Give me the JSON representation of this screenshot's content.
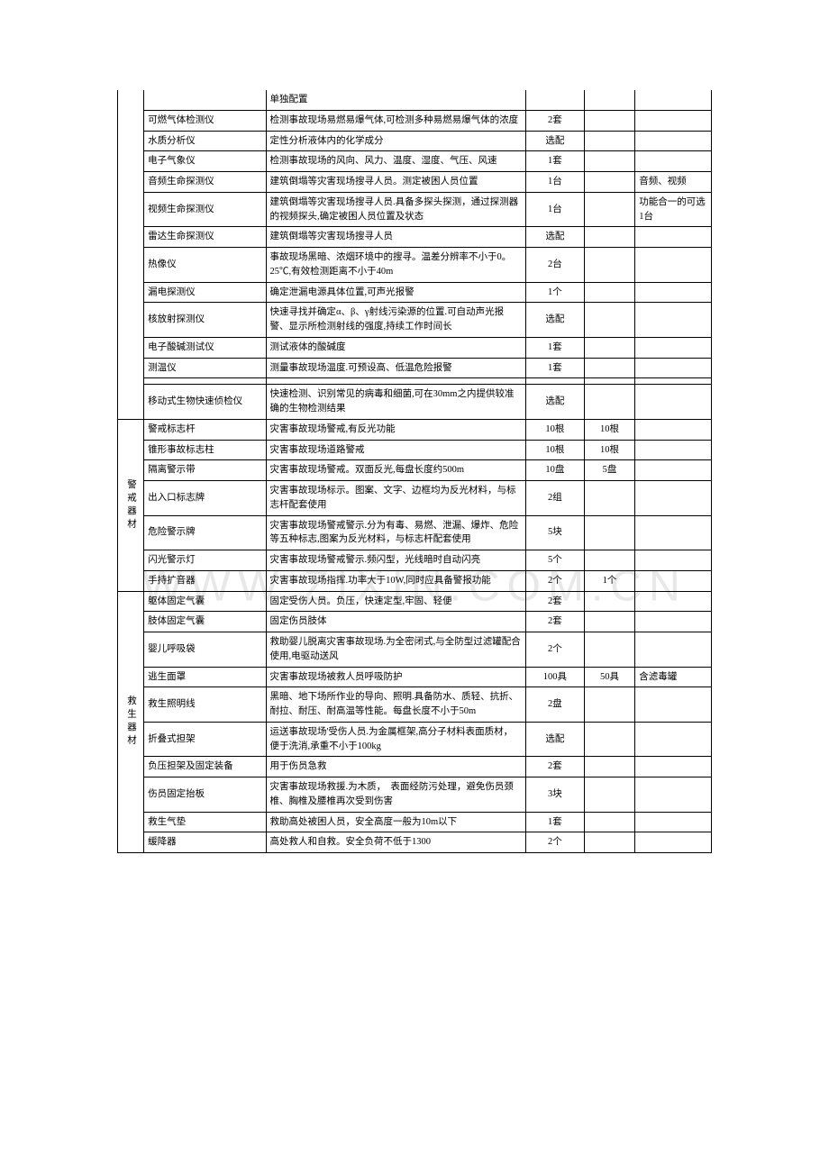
{
  "watermark": "WWW.ZIXIN.COM.CN",
  "table": {
    "columns": [
      "category",
      "name",
      "description",
      "qty1",
      "qty2",
      "note"
    ],
    "rows": [
      {
        "cat": "",
        "cat_rowspan": 14,
        "name": "",
        "desc": "单独配置",
        "qty1": "",
        "qty2": "",
        "note": "",
        "first_row": true
      },
      {
        "name": "可燃气体检测仪",
        "desc": "检测事故现场易燃易爆气体,可检测多种易燃易爆气体的浓度",
        "qty1": "2套",
        "qty2": "",
        "note": ""
      },
      {
        "name": "水质分析仪",
        "desc": "定性分析液体内的化学成分",
        "qty1": "选配",
        "qty2": "",
        "note": ""
      },
      {
        "name": "电子气象仪",
        "desc": "检测事故现场的风向、风力、温度、湿度、气压、风速",
        "qty1": "1套",
        "qty2": "",
        "note": ""
      },
      {
        "name": "音频生命探测仪",
        "desc": "建筑倒塌等灾害现场搜寻人员。测定被困人员位置",
        "qty1": "1台",
        "qty2": "",
        "note": "音频、视频"
      },
      {
        "name": "视频生命探测仪",
        "desc": "建筑倒塌等灾害现场搜寻人员.具备多探头探测，通过探测器的视频探头,确定被困人员位置及状态",
        "qty1": "1台",
        "qty2": "",
        "note": "功能合一的可选1台"
      },
      {
        "name": "雷达生命探测仪",
        "desc": "建筑倒塌等灾害现场搜寻人员",
        "qty1": "选配",
        "qty2": "",
        "note": ""
      },
      {
        "name": "热像仪",
        "desc": "事故现场黑暗、浓烟环境中的搜寻。温差分辨率不小于0。25℃,有效检测距离不小于40m",
        "qty1": "2台",
        "qty2": "",
        "note": ""
      },
      {
        "name": "漏电探测仪",
        "desc": "确定泄漏电源具体位置,可声光报警",
        "qty1": "1个",
        "qty2": "",
        "note": ""
      },
      {
        "name": "核放射探测仪",
        "desc": "快速寻找并确定α、β、γ射线污染源的位置.可自动声光报警、显示所检测射线的强度,持续工作时间长",
        "qty1": "选配",
        "qty2": "",
        "note": ""
      },
      {
        "name": "电子酸碱测试仪",
        "desc": "测试液体的酸碱度",
        "qty1": "1套",
        "qty2": "",
        "note": ""
      },
      {
        "name": "测温仪",
        "desc": "测量事故现场温度.可预设高、低温危险报警",
        "qty1": "1套",
        "qty2": "",
        "note": ""
      },
      {
        "name": "",
        "desc": "",
        "qty1": "",
        "qty2": "",
        "note": ""
      },
      {
        "name": "移动式生物快速侦检仪",
        "desc": "快速检测、识别常见的病毒和细菌,可在30mm之内提供较准确的生物检测结果",
        "qty1": "选配",
        "qty2": "",
        "note": ""
      },
      {
        "cat": "警戒器材",
        "cat_rowspan": 7,
        "name": "警戒标志杆",
        "desc": "灾害事故现场警戒,有反光功能",
        "qty1": "10根",
        "qty2": "10根",
        "note": ""
      },
      {
        "name": "锥形事故标志柱",
        "desc": "灾害事故现场道路警戒",
        "qty1": "10根",
        "qty2": "10根",
        "note": ""
      },
      {
        "name": "隔离警示带",
        "desc": "灾害事故现场警戒。双面反光,每盘长度约500m",
        "qty1": "10盘",
        "qty2": "5盘",
        "note": ""
      },
      {
        "name": "出入口标志牌",
        "desc": "灾害事故现场标示。图案、文字、边框均为反光材料，与标志杆配套使用",
        "qty1": "2组",
        "qty2": "",
        "note": ""
      },
      {
        "name": "危险警示牌",
        "desc": "灾害事故现场警戒警示.分为有毒、易燃、泄漏、爆炸、危险等五种标志,图案为反光材料，与标志杆配套使用",
        "qty1": "5块",
        "qty2": "",
        "note": ""
      },
      {
        "name": "闪光警示灯",
        "desc": "灾害事故现场警戒警示.频闪型，光线暗时自动闪亮",
        "qty1": "5个",
        "qty2": "",
        "note": ""
      },
      {
        "name": "手持扩音器",
        "desc": "灾害事故现场指挥.功率大于10W,同时应具备警报功能",
        "qty1": "2个",
        "qty2": "1个",
        "note": ""
      },
      {
        "cat": "救生器材",
        "cat_rowspan": 10,
        "name": "躯体固定气囊",
        "desc": "固定受伤人员。负压，快速定型,牢固、轻便",
        "qty1": "2套",
        "qty2": "",
        "note": ""
      },
      {
        "name": "肢体固定气囊",
        "desc": "固定伤员肢体",
        "qty1": "2套",
        "qty2": "",
        "note": ""
      },
      {
        "name": "婴儿呼吸袋",
        "desc": "救助婴儿脱离灾害事故现场.为全密闭式,与全防型过滤罐配合使用,电驱动送风",
        "qty1": "2个",
        "qty2": "",
        "note": ""
      },
      {
        "name": "逃生面罩",
        "desc": "灾害事故现场被救人员呼吸防护",
        "qty1": "100具",
        "qty2": "50具",
        "note": "含滤毒罐"
      },
      {
        "name": "救生照明线",
        "desc": "黑暗、地下场所作业的导向、照明.具备防水、质轻、抗折、耐拉、耐压、耐高温等性能。每盘长度不小于50m",
        "qty1": "2盘",
        "qty2": "",
        "note": ""
      },
      {
        "name": "折叠式担架",
        "desc": "运送事故现场'受伤人员.为金属框架,高分子材料表面质材，便于洗消,承重不小于100kg",
        "qty1": "选配",
        "qty2": "",
        "note": ""
      },
      {
        "name": "负压担架及固定装备",
        "desc": "用于伤员急救",
        "qty1": "2套",
        "qty2": "",
        "note": ""
      },
      {
        "name": "伤员固定抬板",
        "desc": "灾害事故现场救援.为木质，　表面经防污处理，避免伤员颈椎、胸椎及腰椎再次受到伤害",
        "qty1": "3块",
        "qty2": "",
        "note": ""
      },
      {
        "name": "救生气垫",
        "desc": "救助高处被困人员，安全高度一般为10m以下",
        "qty1": "1套",
        "qty2": "",
        "note": ""
      },
      {
        "name": "缓降器",
        "desc": "高处救人和自救。安全负荷不低于1300",
        "qty1": "2个",
        "qty2": "",
        "note": ""
      }
    ]
  }
}
